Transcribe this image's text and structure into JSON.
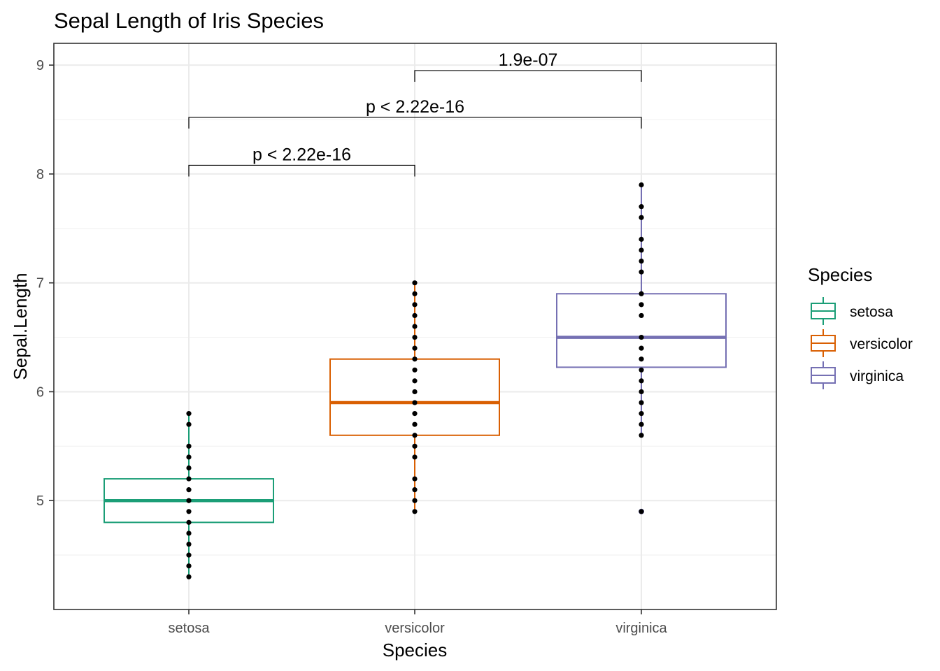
{
  "chart_data": {
    "type": "boxplot",
    "title": "Sepal Length of Iris Species",
    "xlabel": "Species",
    "ylabel": "Sepal.Length",
    "ylim": [
      4.0,
      9.2
    ],
    "yticks": [
      5,
      6,
      7,
      8,
      9
    ],
    "grid": true,
    "categories": [
      "setosa",
      "versicolor",
      "virginica"
    ],
    "colors": [
      "#1b9e77",
      "#d95f02",
      "#7570b3"
    ],
    "boxes": [
      {
        "category": "setosa",
        "whisker_low": 4.3,
        "q1": 4.8,
        "median": 5.0,
        "q3": 5.2,
        "whisker_high": 5.8,
        "outliers": []
      },
      {
        "category": "versicolor",
        "whisker_low": 4.9,
        "q1": 5.6,
        "median": 5.9,
        "q3": 6.3,
        "whisker_high": 7.0,
        "outliers": []
      },
      {
        "category": "virginica",
        "whisker_low": 5.6,
        "q1": 6.225,
        "median": 6.5,
        "q3": 6.9,
        "whisker_high": 7.9,
        "outliers": [
          4.9
        ]
      }
    ],
    "points": [
      {
        "category": "setosa",
        "values": [
          4.3,
          4.4,
          4.5,
          4.6,
          4.7,
          4.8,
          4.9,
          5.0,
          5.1,
          5.2,
          5.3,
          5.4,
          5.5,
          5.7,
          5.8
        ]
      },
      {
        "category": "versicolor",
        "values": [
          4.9,
          5.0,
          5.1,
          5.2,
          5.4,
          5.5,
          5.6,
          5.7,
          5.8,
          5.9,
          6.0,
          6.1,
          6.2,
          6.3,
          6.4,
          6.5,
          6.6,
          6.7,
          6.8,
          6.9,
          7.0
        ]
      },
      {
        "category": "virginica",
        "values": [
          4.9,
          5.6,
          5.7,
          5.8,
          5.9,
          6.0,
          6.1,
          6.2,
          6.3,
          6.4,
          6.5,
          6.7,
          6.8,
          6.9,
          7.1,
          7.2,
          7.3,
          7.4,
          7.6,
          7.7,
          7.9
        ]
      }
    ],
    "comparisons": [
      {
        "from": "versicolor",
        "to": "virginica",
        "y": 8.95,
        "label": "1.9e-07"
      },
      {
        "from": "setosa",
        "to": "virginica",
        "y": 8.52,
        "label": "p < 2.22e-16"
      },
      {
        "from": "setosa",
        "to": "versicolor",
        "y": 8.08,
        "label": "p < 2.22e-16"
      }
    ],
    "legend": {
      "title": "Species",
      "position": "right",
      "entries": [
        "setosa",
        "versicolor",
        "virginica"
      ]
    }
  }
}
